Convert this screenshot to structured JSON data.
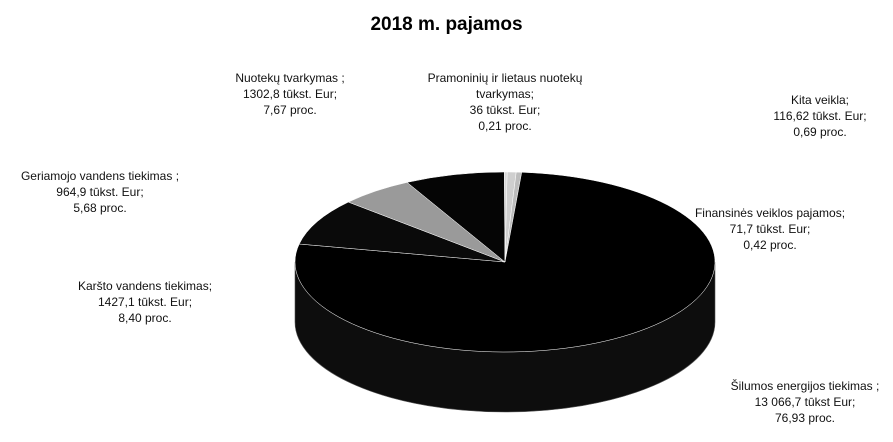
{
  "chart_data": {
    "type": "pie",
    "title": "2018 m. pajamos",
    "categories": [
      "Kita veikla;",
      "Finansinės veiklos pajamos;",
      "Šilumos energijos tiekimas ;",
      "Karšto vandens tiekimas;",
      "Geriamojo vandens tiekimas ;",
      "Nuotekų tvarkymas ;",
      "Pramoninių ir lietaus nuotekų tvarkymas;"
    ],
    "amount_labels": [
      "116,62 tūkst. Eur;",
      "71,7 tūkst. Eur;",
      "13 066,7 tūkst Eur;",
      "1427,1 tūkst. Eur;",
      "964,9 tūkst. Eur;",
      "1302,8 tūkst. Eur;",
      "36 tūkst. Eur;"
    ],
    "values": [
      0.69,
      0.42,
      76.93,
      8.4,
      5.68,
      7.67,
      0.21
    ],
    "value_labels": [
      "0,69 proc.",
      "0,42 proc.",
      "76,93 proc.",
      "8,40 proc.",
      "5,68 proc.",
      "7,67 proc.",
      "0,21 proc."
    ],
    "colors": [
      "#cfcfcf",
      "#bdbdbd",
      "#000000",
      "#0a0a0a",
      "#9a9a9a",
      "#050505",
      "#d8d8d8"
    ]
  }
}
